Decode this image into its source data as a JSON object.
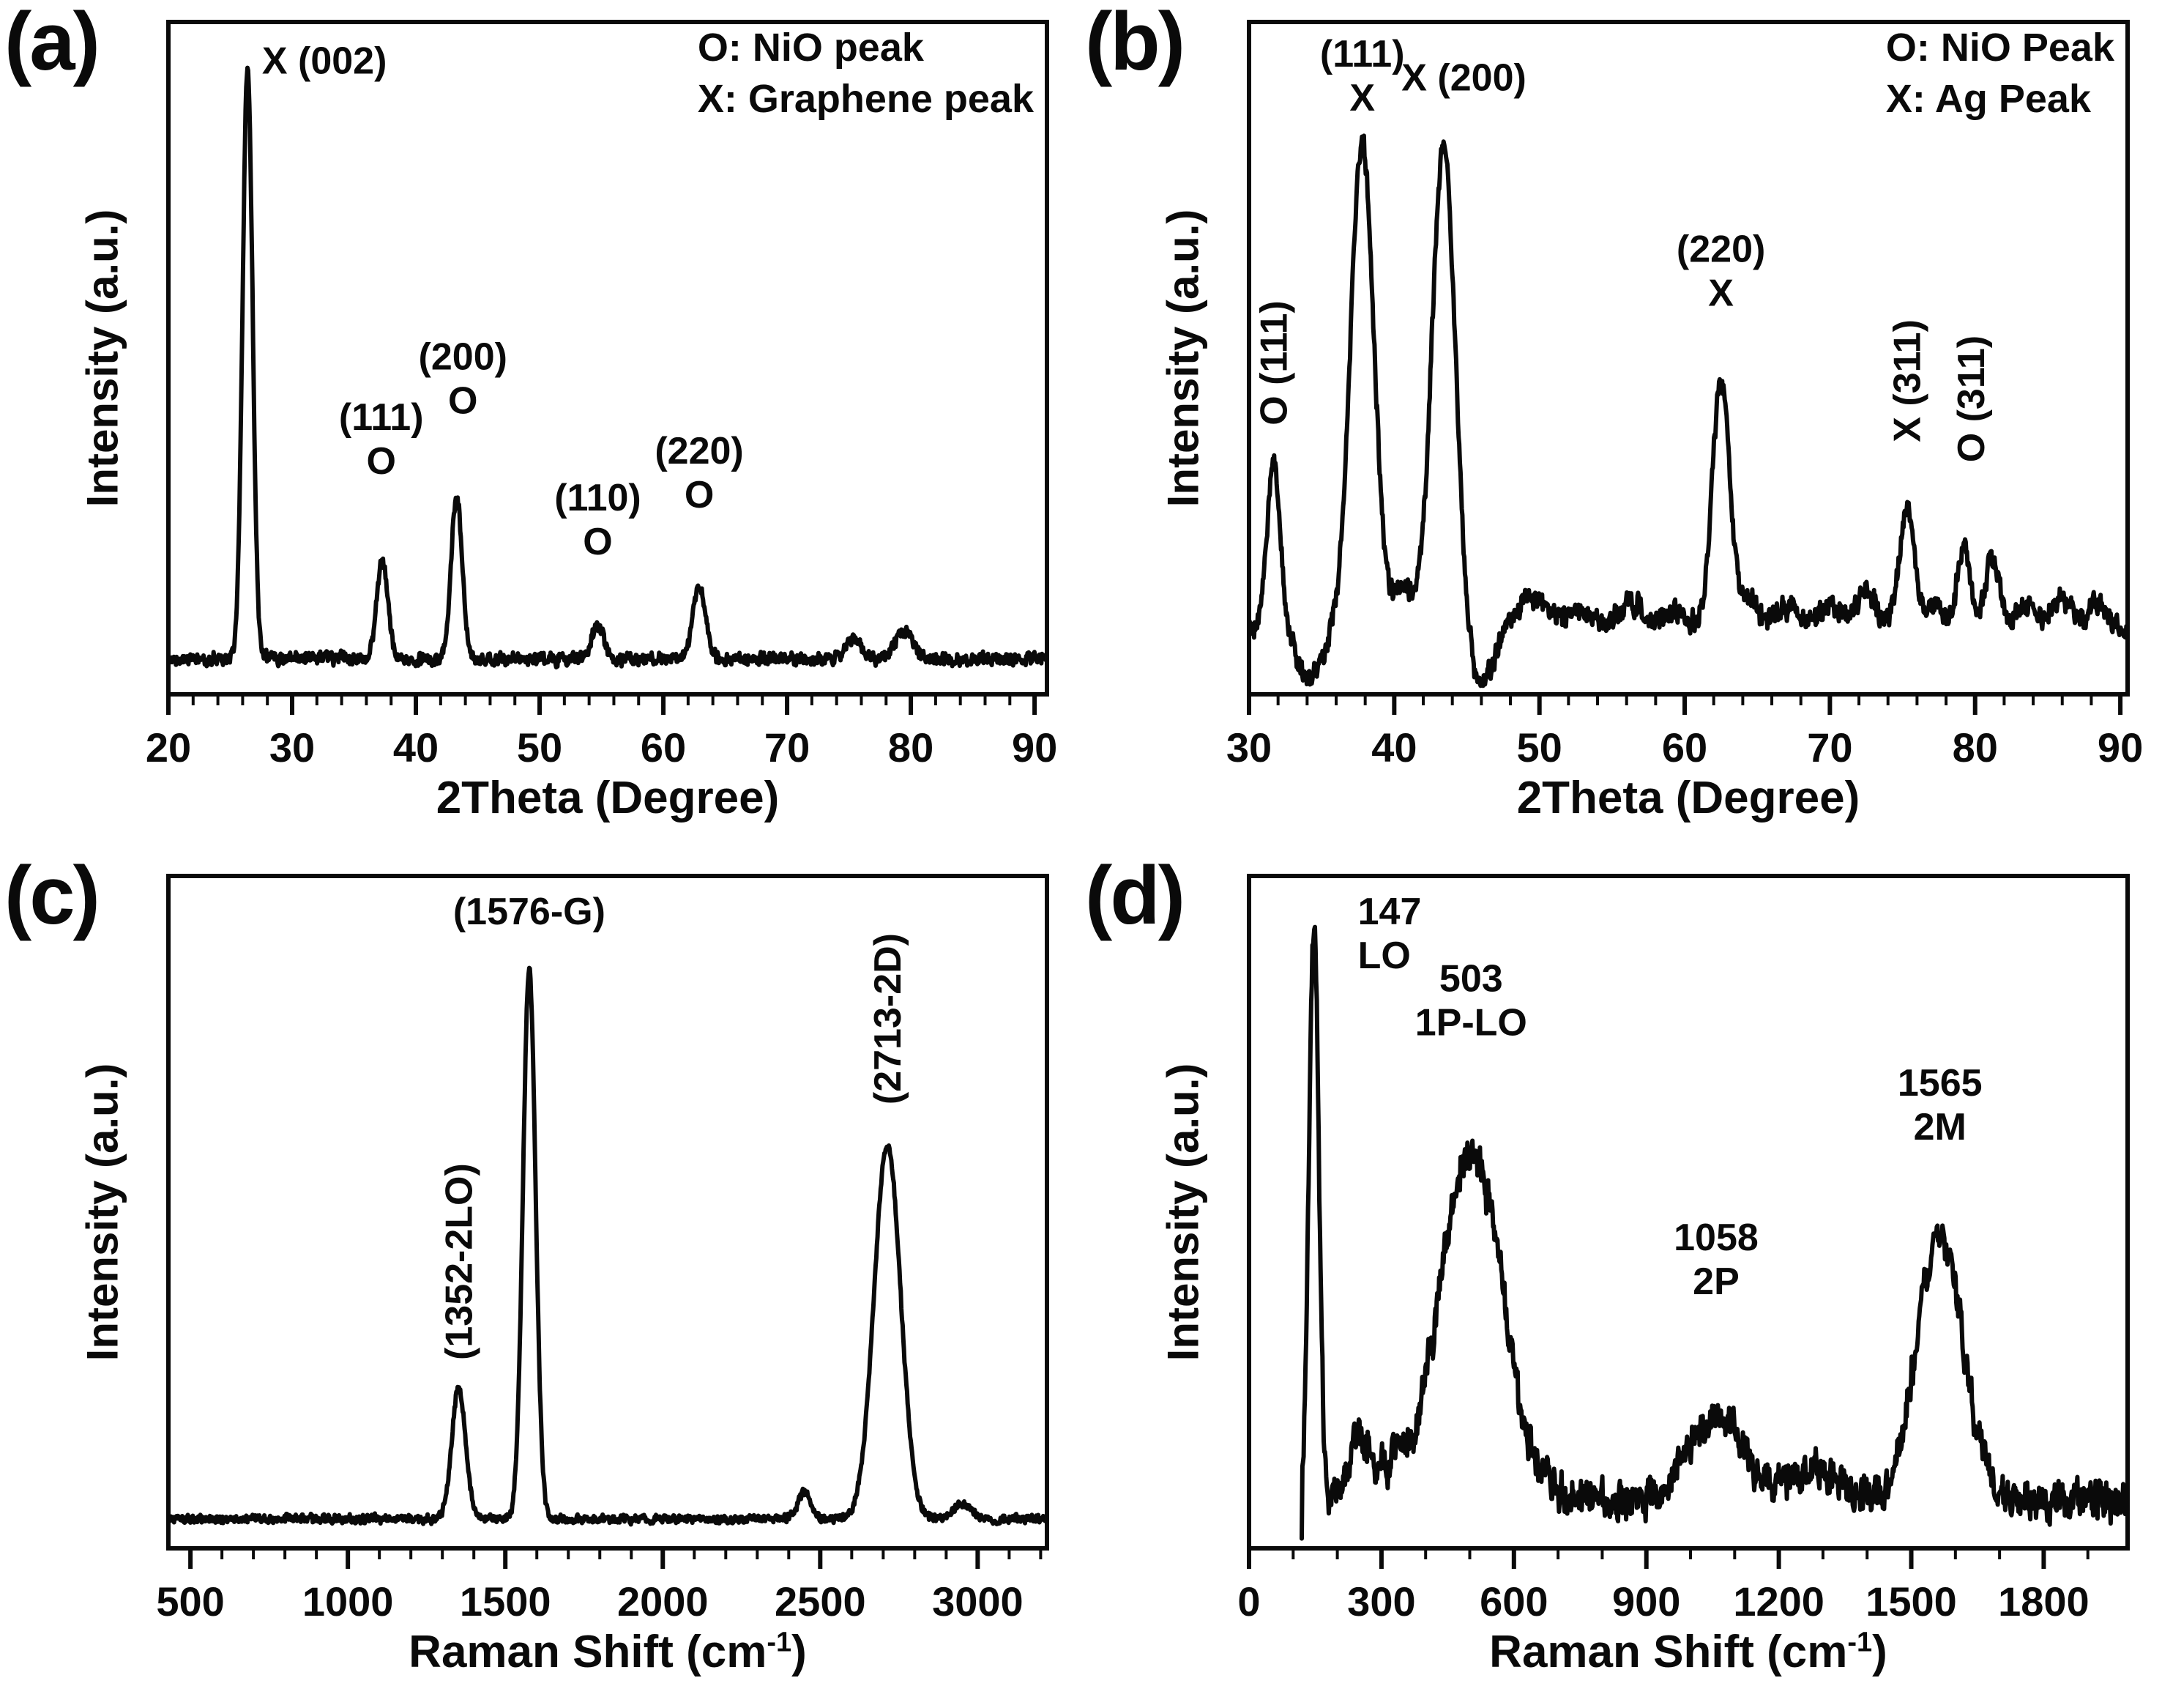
{
  "chart_data": [
    {
      "label": "(a)",
      "type": "line",
      "xlabel": "2Theta (Degree)",
      "ylabel": "Intensity (a.u.)",
      "xlim": [
        20,
        91
      ],
      "xticks": [
        20,
        30,
        40,
        50,
        60,
        70,
        80,
        90
      ],
      "minor_step": 2,
      "legend": [
        "O: NiO peak",
        "X: Graphene peak"
      ],
      "curve": {
        "baseline": 0.045,
        "noise": 0.012,
        "noise_smooth": 0.3,
        "peaks": [
          {
            "x": 26.4,
            "h": 0.95,
            "w": 0.4
          },
          {
            "x": 37.3,
            "h": 0.155,
            "w": 0.45
          },
          {
            "x": 43.3,
            "h": 0.26,
            "w": 0.45
          },
          {
            "x": 54.7,
            "h": 0.055,
            "w": 0.5
          },
          {
            "x": 62.9,
            "h": 0.115,
            "w": 0.5
          },
          {
            "x": 75.4,
            "h": 0.03,
            "w": 0.6
          },
          {
            "x": 79.4,
            "h": 0.045,
            "w": 0.7
          }
        ]
      },
      "annotations": [
        {
          "text": [
            "X (002)"
          ],
          "x": 26.4,
          "dx": 105,
          "yfrac": 0.02
        },
        {
          "text": [
            "(111)",
            "O"
          ],
          "x": 37.2,
          "yfrac": 0.55
        },
        {
          "text": [
            "(200)",
            "O"
          ],
          "x": 43.8,
          "yfrac": 0.46
        },
        {
          "text": [
            "(110)",
            "O"
          ],
          "x": 54.7,
          "yfrac": 0.67
        },
        {
          "text": [
            "(220)",
            "O"
          ],
          "x": 62.9,
          "yfrac": 0.6
        }
      ]
    },
    {
      "label": "(b)",
      "type": "line",
      "xlabel": "2Theta (Degree)",
      "ylabel": "Intensity (a.u.)",
      "xlim": [
        30,
        90.5
      ],
      "xticks": [
        30,
        40,
        50,
        60,
        70,
        80,
        90
      ],
      "minor_step": 2,
      "legend": [
        "O: NiO Peak",
        "X: Ag Peak"
      ],
      "curve": {
        "baseline": 0.09,
        "noise": 0.022,
        "noise_smooth": 0.35,
        "peaks": [
          {
            "x": 31.7,
            "h": 0.27,
            "w": 0.45
          },
          {
            "x": 34.2,
            "h": -0.08,
            "w": 0.8
          },
          {
            "x": 37.8,
            "h": 0.78,
            "w": 0.8
          },
          {
            "x": 40.6,
            "h": 0.07,
            "w": 0.7
          },
          {
            "x": 43.4,
            "h": 0.78,
            "w": 0.8
          },
          {
            "x": 45.9,
            "h": -0.09,
            "w": 0.9
          },
          {
            "x": 49.5,
            "h": 0.05,
            "w": 1.2
          },
          {
            "x": 53.0,
            "h": 0.03,
            "w": 1.0
          },
          {
            "x": 56.5,
            "h": 0.045,
            "w": 1.0
          },
          {
            "x": 59.5,
            "h": 0.03,
            "w": 0.8
          },
          {
            "x": 62.5,
            "h": 0.4,
            "w": 0.6
          },
          {
            "x": 64.3,
            "h": 0.05,
            "w": 0.6
          },
          {
            "x": 67.0,
            "h": 0.04,
            "w": 1.0
          },
          {
            "x": 70.0,
            "h": 0.04,
            "w": 0.8
          },
          {
            "x": 72.5,
            "h": 0.06,
            "w": 0.7
          },
          {
            "x": 75.3,
            "h": 0.19,
            "w": 0.55
          },
          {
            "x": 77.3,
            "h": 0.05,
            "w": 0.5
          },
          {
            "x": 79.2,
            "h": 0.135,
            "w": 0.45
          },
          {
            "x": 81.2,
            "h": 0.115,
            "w": 0.5
          },
          {
            "x": 83.5,
            "h": 0.04,
            "w": 0.7
          },
          {
            "x": 86.0,
            "h": 0.05,
            "w": 0.8
          },
          {
            "x": 88.5,
            "h": 0.04,
            "w": 0.7
          }
        ]
      },
      "annotations": [
        {
          "text": [
            "O (111)"
          ],
          "x": 31.7,
          "yfrac": 0.6,
          "rot": -90
        },
        {
          "text": [
            "(111)",
            "X"
          ],
          "x": 37.8,
          "yfrac": 0.01
        },
        {
          "text": [
            "X (200)"
          ],
          "x": 44.8,
          "yfrac": 0.045
        },
        {
          "text": [
            "(220)",
            "X"
          ],
          "x": 62.5,
          "yfrac": 0.3
        },
        {
          "text": [
            "X (311)"
          ],
          "x": 75.3,
          "yfrac": 0.625,
          "rot": -90
        },
        {
          "text": [
            "O (311)"
          ],
          "x": 79.7,
          "yfrac": 0.655,
          "rot": -90
        }
      ]
    },
    {
      "label": "(c)",
      "type": "line",
      "xlabel_parts": {
        "main": "Raman Shift (cm",
        "sup": "-1",
        "end": ")"
      },
      "ylabel": "Intensity (a.u.)",
      "xlim": [
        430,
        3220
      ],
      "xticks": [
        500,
        1000,
        1500,
        2000,
        2500,
        3000
      ],
      "minor_step": 100,
      "curve": {
        "baseline": 0.035,
        "noise": 0.008,
        "noise_smooth": 0.3,
        "peaks": [
          {
            "x": 1352,
            "h": 0.21,
            "w": 22
          },
          {
            "x": 1576,
            "h": 0.88,
            "w": 20
          },
          {
            "x": 2450,
            "h": 0.045,
            "w": 20
          },
          {
            "x": 2713,
            "h": 0.6,
            "w": 42
          },
          {
            "x": 2950,
            "h": 0.025,
            "w": 30
          }
        ]
      },
      "annotations": [
        {
          "text": [
            "(1352-2LO)"
          ],
          "x": 1352,
          "yfrac": 0.72,
          "rot": -90
        },
        {
          "text": [
            "(1576-G)"
          ],
          "x": 1576,
          "yfrac": 0.015
        },
        {
          "text": [
            "(2713-2D)"
          ],
          "x": 2713,
          "yfrac": 0.34,
          "rot": -90
        }
      ]
    },
    {
      "label": "(d)",
      "type": "line",
      "xlabel_parts": {
        "main": "Raman Shift (cm",
        "sup": "-1",
        "end": ")"
      },
      "ylabel": "Intensity (a.u.)",
      "xlim": [
        0,
        1990
      ],
      "xticks": [
        0,
        300,
        600,
        900,
        1200,
        1500,
        1800
      ],
      "minor_step": 100,
      "curve": {
        "baseline": 0.065,
        "noise": 0.045,
        "noise_smooth": 0.5,
        "xstart": 118,
        "drop_start": true,
        "peaks": [
          {
            "x": 147,
            "h": 0.93,
            "w": 11
          },
          {
            "x": 255,
            "h": 0.1,
            "w": 25
          },
          {
            "x": 330,
            "h": 0.05,
            "w": 25
          },
          {
            "x": 503,
            "h": 0.56,
            "w": 70
          },
          {
            "x": 1058,
            "h": 0.13,
            "w": 65
          },
          {
            "x": 1290,
            "h": 0.05,
            "w": 55
          },
          {
            "x": 1565,
            "h": 0.42,
            "w": 52
          }
        ]
      },
      "annotations": [
        {
          "text": [
            "147",
            "LO"
          ],
          "x": 147,
          "dx": 60,
          "yfrac": 0.015,
          "align": "start"
        },
        {
          "text": [
            "503",
            "1P-LO"
          ],
          "x": 503,
          "yfrac": 0.115
        },
        {
          "text": [
            "1058",
            "2P"
          ],
          "x": 1058,
          "yfrac": 0.5
        },
        {
          "text": [
            "1565",
            "2M"
          ],
          "x": 1565,
          "yfrac": 0.27
        }
      ]
    }
  ],
  "style": {
    "line_color": "#0a0a0a",
    "background": "#ffffff"
  }
}
